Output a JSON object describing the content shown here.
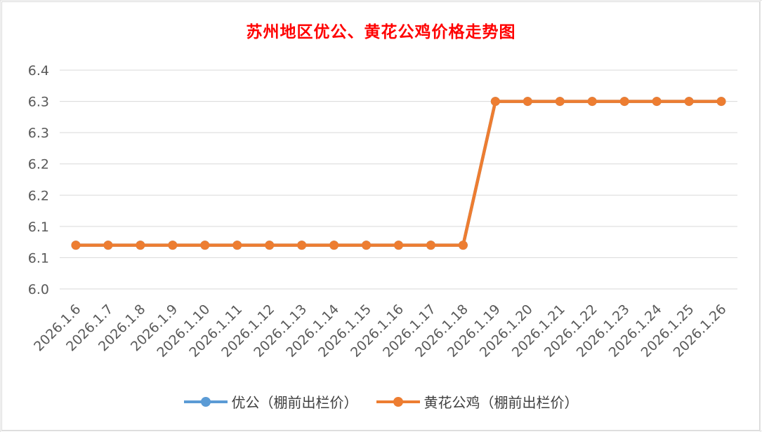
{
  "chart_data": {
    "type": "line",
    "title": "苏州地区优公、黄花公鸡价格走势图",
    "xlabel": "",
    "ylabel": "",
    "categories": [
      "2026.1.6",
      "2026.1.7",
      "2026.1.8",
      "2026.1.9",
      "2026.1.10",
      "2026.1.11",
      "2026.1.12",
      "2026.1.13",
      "2026.1.14",
      "2026.1.15",
      "2026.1.16",
      "2026.1.17",
      "2026.1.18",
      "2026.1.19",
      "2026.1.20",
      "2026.1.21",
      "2026.1.22",
      "2026.1.23",
      "2026.1.24",
      "2026.1.25",
      "2026.1.26"
    ],
    "y_tick_labels": [
      "6.0",
      "6.1",
      "6.1",
      "6.2",
      "6.2",
      "6.3",
      "6.3",
      "6.4"
    ],
    "ylim": [
      6.0,
      6.35
    ],
    "grid": true,
    "legend_position": "bottom",
    "series": [
      {
        "name": "优公（棚前出栏价）",
        "color": "#5b9bd5",
        "values": [
          6.07,
          6.07,
          6.07,
          6.07,
          6.07,
          6.07,
          6.07,
          6.07,
          6.07,
          6.07,
          6.07,
          6.07,
          6.07,
          6.3,
          6.3,
          6.3,
          6.3,
          6.3,
          6.3,
          6.3,
          6.3
        ]
      },
      {
        "name": "黄花公鸡（棚前出栏价）",
        "color": "#ed7d31",
        "values": [
          6.07,
          6.07,
          6.07,
          6.07,
          6.07,
          6.07,
          6.07,
          6.07,
          6.07,
          6.07,
          6.07,
          6.07,
          6.07,
          6.3,
          6.3,
          6.3,
          6.3,
          6.3,
          6.3,
          6.3,
          6.3
        ]
      }
    ]
  }
}
